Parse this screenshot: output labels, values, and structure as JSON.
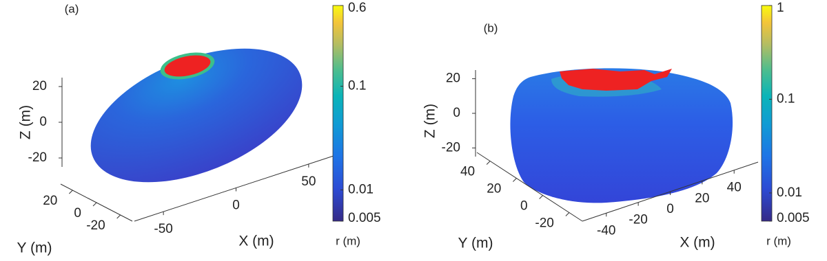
{
  "chart_data": [
    {
      "type": "surface",
      "panel_label": "(a)",
      "xlabel": "X (m)",
      "ylabel": "Y (m)",
      "zlabel": "Z (m)",
      "xlim": [
        -70,
        70
      ],
      "xticks": [
        -50,
        0,
        50
      ],
      "ylim": [
        -30,
        30
      ],
      "yticks": [
        -20,
        0,
        20
      ],
      "zlim": [
        -25,
        25
      ],
      "zticks": [
        -20,
        0,
        20
      ],
      "colorbar": {
        "label": "r (m)",
        "clim": [
          0.005,
          0.6
        ],
        "ticks": [
          0.005,
          0.01,
          0.1,
          0.6
        ],
        "log": true
      }
    },
    {
      "type": "surface",
      "panel_label": "(b)",
      "xlabel": "X (m)",
      "ylabel": "Y (m)",
      "zlabel": "Z (m)",
      "xlim": [
        -55,
        55
      ],
      "xticks": [
        -40,
        -20,
        0,
        20,
        40
      ],
      "ylim": [
        -30,
        50
      ],
      "yticks": [
        -20,
        0,
        20,
        40
      ],
      "zlim": [
        -25,
        25
      ],
      "zticks": [
        -20,
        0,
        20
      ],
      "colorbar": {
        "label": "r (m)",
        "clim": [
          0.005,
          1
        ],
        "ticks": [
          0.005,
          0.01,
          0.1,
          1
        ],
        "log": true
      }
    }
  ]
}
